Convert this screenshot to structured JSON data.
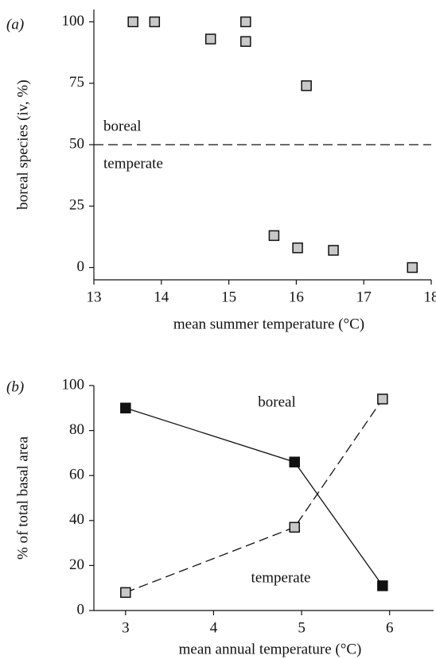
{
  "chart_data": [
    {
      "type": "scatter",
      "panel_label": "(a)",
      "x_label": "mean summer temperature (°C)",
      "y_label": "boreal species (iv, %)",
      "x": [
        13.58,
        13.9,
        14.73,
        15.25,
        15.25,
        16.15,
        15.67,
        16.02,
        16.55,
        17.72
      ],
      "values": [
        100,
        100,
        93,
        100,
        92,
        74,
        13,
        8,
        7,
        0
      ],
      "color": "#c8c8c8",
      "xlim": [
        13,
        18
      ],
      "xticks": [
        13,
        14,
        15,
        16,
        17,
        18
      ],
      "ylim": [
        -5,
        105
      ],
      "yticks": [
        0,
        25,
        50,
        75,
        100
      ],
      "threshold": 50,
      "annotations": [
        "boreal",
        "temperate"
      ]
    },
    {
      "type": "line",
      "panel_label": "(b)",
      "x_label": "mean annual temperature (°C)",
      "y_label": "% of total basal area",
      "x": [
        3,
        4.92,
        5.92
      ],
      "series": [
        {
          "name": "boreal",
          "color": "#111111",
          "line_style": "solid",
          "values": [
            90,
            66,
            11
          ]
        },
        {
          "name": "temperate",
          "color": "#c8c8c8",
          "line_style": "dashed",
          "values": [
            8,
            37,
            94
          ]
        }
      ],
      "xlim": [
        2.64,
        6.5
      ],
      "xticks": [
        3,
        4,
        5,
        6
      ],
      "ylim": [
        0,
        100
      ],
      "yticks": [
        0,
        20,
        40,
        60,
        80,
        100
      ]
    }
  ]
}
